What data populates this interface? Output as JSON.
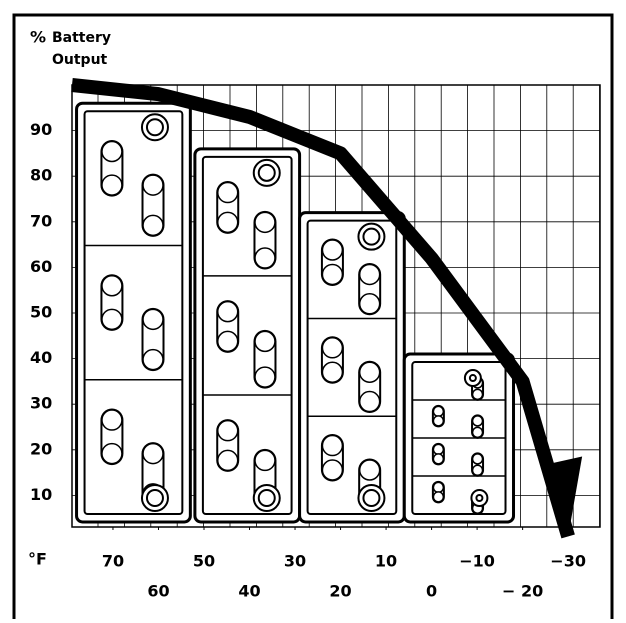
{
  "chart_data": {
    "type": "battery-chart",
    "y_label_symbol": "%",
    "y_label_line1": "Battery",
    "y_label_line2": "Output",
    "x_label": "°F",
    "ylim": [
      0,
      100
    ],
    "yticks": [
      10,
      20,
      30,
      40,
      50,
      60,
      70,
      80,
      90
    ],
    "xlim": [
      79,
      -37
    ],
    "xticks": [
      70,
      60,
      50,
      40,
      30,
      20,
      10,
      0,
      {
        "value": -10,
        "label": "−10"
      },
      {
        "value": -20,
        "label": "− 20"
      },
      {
        "value": -30,
        "label": "−30"
      }
    ],
    "grid": true,
    "batteries": {
      "x0": [
        78,
        52,
        29,
        6
      ],
      "x1": [
        53,
        29,
        6,
        -18
      ],
      "values": [
        96,
        86,
        72,
        41
      ]
    },
    "curve": {
      "x": [
        79,
        60,
        40,
        20,
        0,
        -20,
        -30
      ],
      "values": [
        100,
        98,
        93,
        85,
        62,
        35,
        1
      ]
    }
  }
}
